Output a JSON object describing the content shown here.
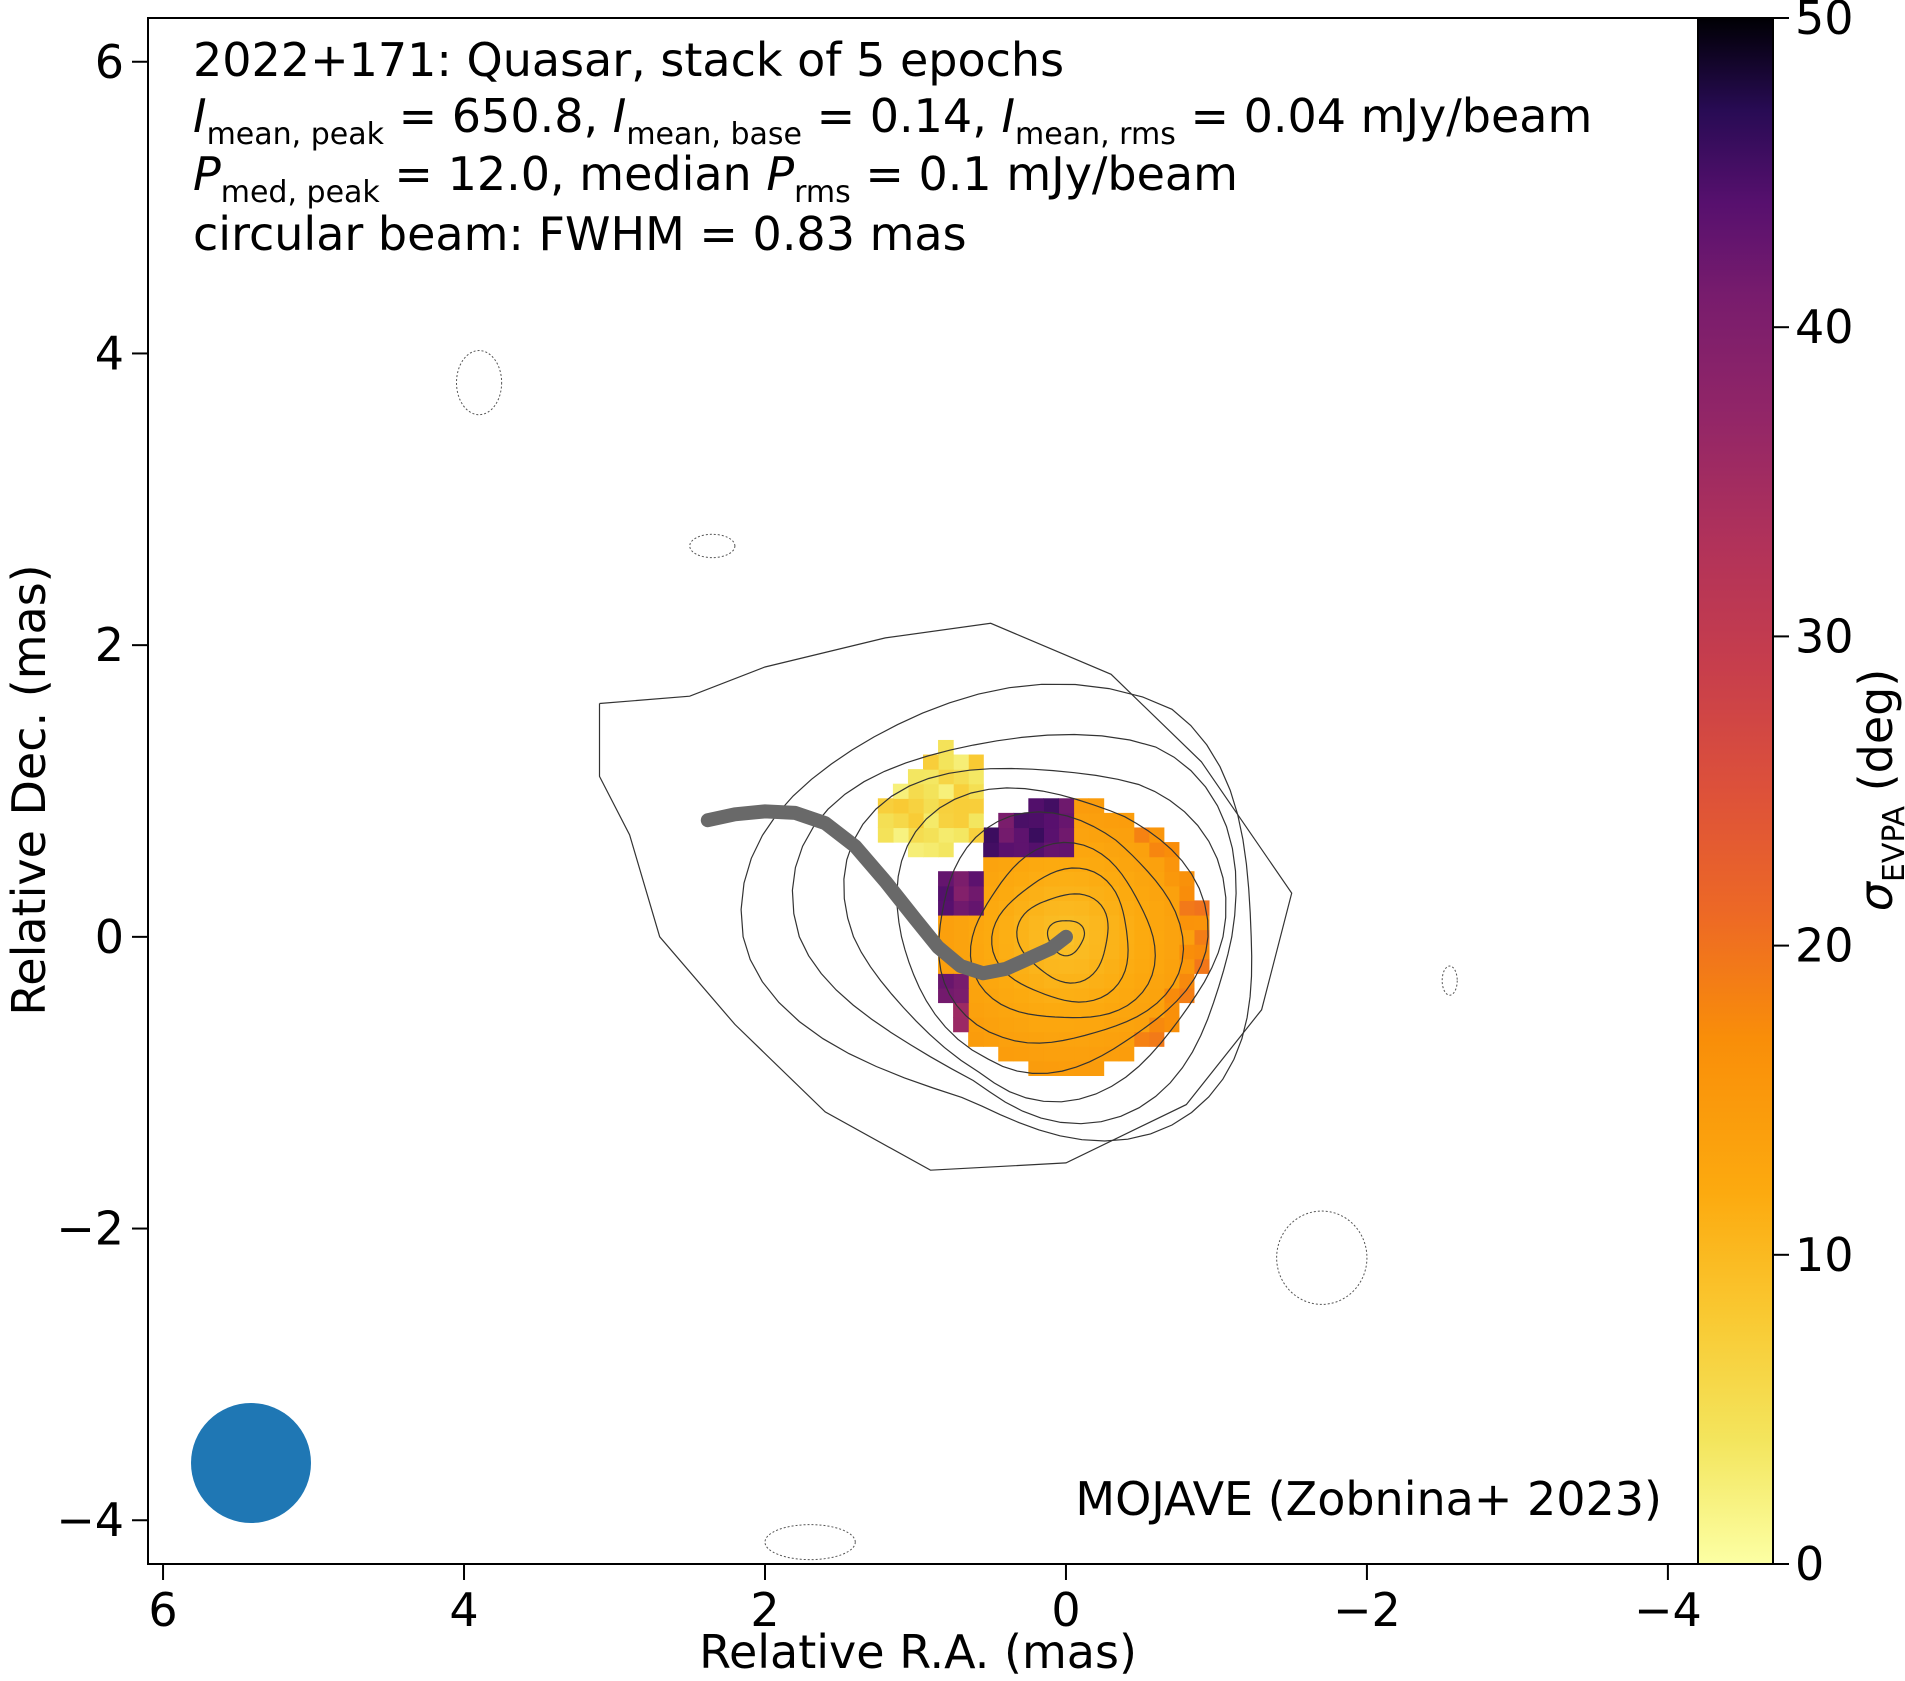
{
  "chart_data": {
    "type": "heatmap",
    "source": "2022+171",
    "object_class": "Quasar",
    "stack_info": "stack of 5 epochs",
    "annotation_lines": [
      "2022+171: Quasar, stack of 5 epochs",
      "circular beam: FWHM = 0.83 mas"
    ],
    "intensity": {
      "mean_peak": 650.8,
      "mean_base": 0.14,
      "mean_rms": 0.04,
      "units": "mJy/beam"
    },
    "polarization": {
      "med_peak": 12.0,
      "median_rms": 0.1,
      "units": "mJy/beam"
    },
    "beam_fwhm_mas": 0.83,
    "credit": "MOJAVE (Zobnina+ 2023)",
    "xlabel": "Relative R.A. (mas)",
    "ylabel": "Relative Dec. (mas)",
    "xlim": [
      6.1,
      -4.2
    ],
    "ylim": [
      -4.3,
      6.3
    ],
    "xticks": [
      6,
      4,
      2,
      0,
      -2,
      -4
    ],
    "yticks": [
      6,
      4,
      2,
      0,
      -2,
      -4
    ],
    "colorbar": {
      "label": "σ_EVPA (deg)",
      "range": [
        0,
        50
      ],
      "ticks": [
        0,
        10,
        20,
        30,
        40,
        50
      ],
      "colormap": "inferno_r"
    },
    "contour_levels_mas_radius": [
      0.12,
      0.3,
      0.45,
      0.6,
      0.75,
      0.9,
      1.05,
      1.2,
      1.38
    ],
    "ridge_line": [
      [
        2.38,
        0.8
      ],
      [
        2.2,
        0.84
      ],
      [
        2.0,
        0.86
      ],
      [
        1.8,
        0.85
      ],
      [
        1.6,
        0.78
      ],
      [
        1.4,
        0.62
      ],
      [
        1.2,
        0.38
      ],
      [
        1.0,
        0.12
      ],
      [
        0.85,
        -0.07
      ],
      [
        0.7,
        -0.2
      ],
      [
        0.55,
        -0.25
      ],
      [
        0.4,
        -0.22
      ],
      [
        0.25,
        -0.15
      ],
      [
        0.1,
        -0.08
      ],
      [
        0.0,
        0.0
      ]
    ],
    "colors": {
      "ridge": "#696969",
      "beam": "#1f77b4",
      "contour": "#333333"
    }
  },
  "labels": {
    "title_line1": "2022+171: Quasar, stack of 5 epochs",
    "line2_i_mean": "I",
    "line2_sub_peak": "mean, peak",
    "line2_val_peak": " = 650.8, ",
    "line2_sub_base": "mean, base",
    "line2_val_base": " = 0.14, ",
    "line2_sub_rms": "mean, rms",
    "line2_val_rms": " = 0.04 mJy/beam",
    "line3_p": "P",
    "line3_sub_peak": "med, peak",
    "line3_val_peak": " = 12.0, median ",
    "line3_sub_rms": "rms",
    "line3_val_rms": " = 0.1 mJy/beam",
    "line4": "circular beam: FWHM = 0.83 mas",
    "credit": "MOJAVE (Zobnina+ 2023)",
    "xlabel": "Relative R.A. (mas)",
    "ylabel": "Relative Dec. (mas)",
    "cbar_sigma": "σ",
    "cbar_sub": "EVPA",
    "cbar_unit": " (deg)",
    "xtick_labels": [
      "6",
      "4",
      "2",
      "0",
      "−2",
      "−4"
    ],
    "ytick_labels": [
      "6",
      "4",
      "2",
      "0",
      "−2",
      "−4"
    ],
    "cbar_tick_labels": [
      "0",
      "10",
      "20",
      "30",
      "40",
      "50"
    ]
  }
}
